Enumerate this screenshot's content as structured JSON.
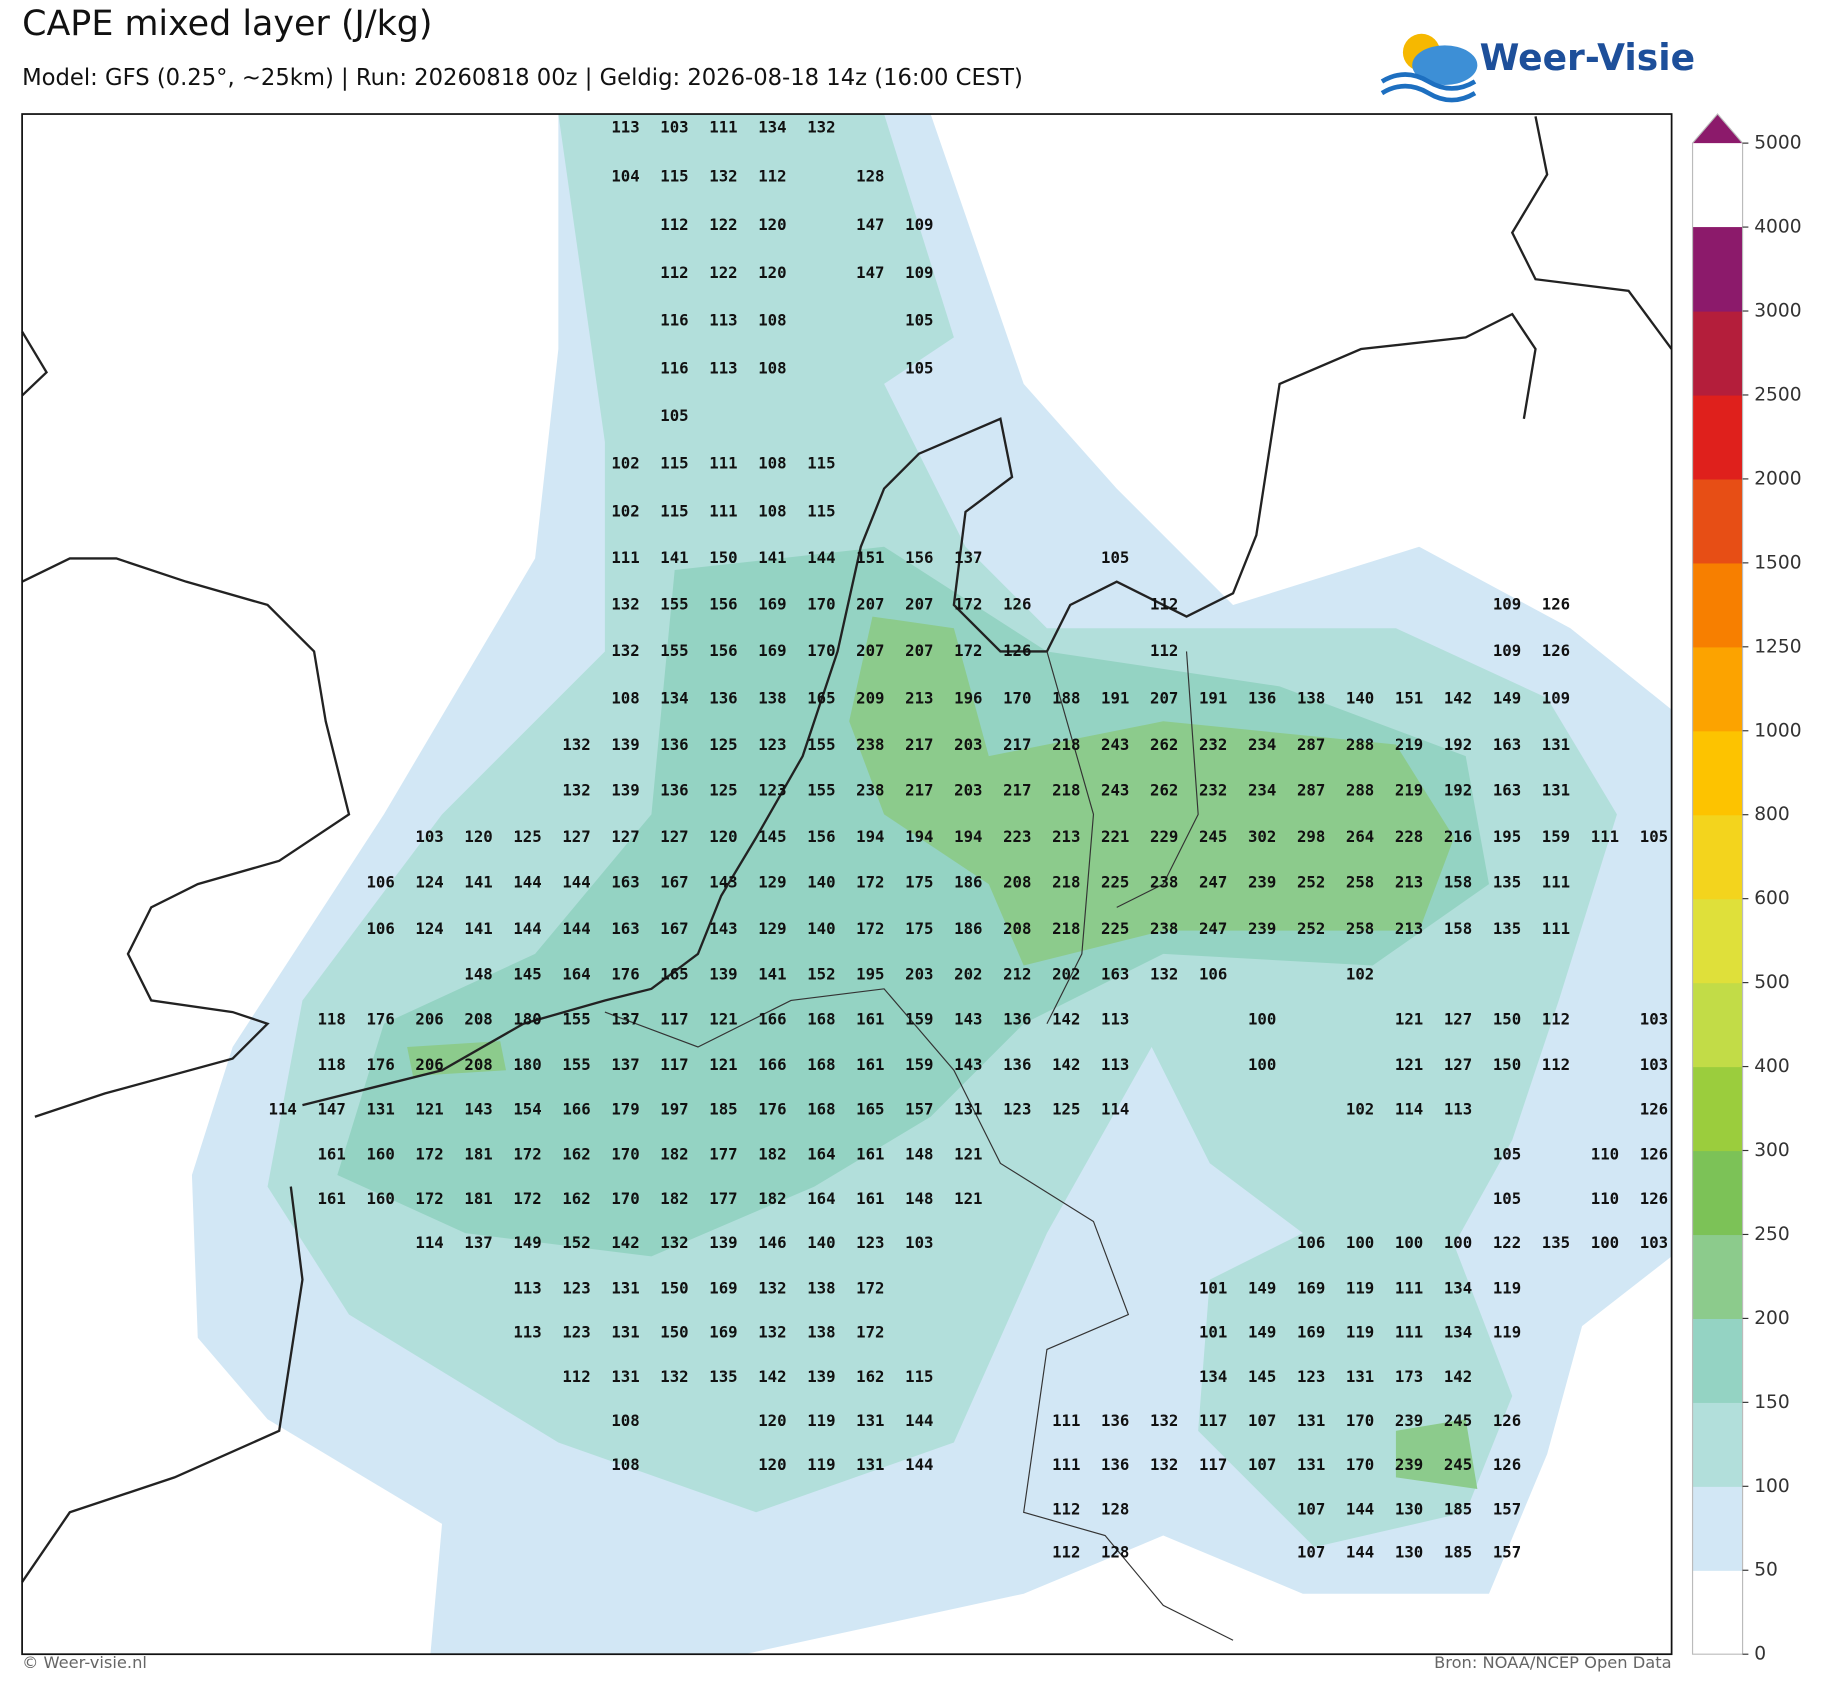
{
  "header": {
    "title": "CAPE mixed layer (J/kg)",
    "subtitle": "Model: GFS (0.25°, ~25km)  |  Run: 20260818 00z  |  Geldig: 2026-08-18 14z (16:00 CEST)"
  },
  "logo": "Weer-Visie",
  "map": {
    "values": [
      [
        113,
        103,
        111,
        134,
        132
      ],
      [
        104,
        115,
        132,
        112,
        128
      ],
      [
        112,
        122,
        120,
        147,
        109
      ],
      [
        112,
        122,
        120,
        147,
        109
      ],
      [
        116,
        113,
        108,
        105
      ],
      [
        116,
        113,
        108,
        105
      ],
      [
        105
      ],
      [
        102,
        115,
        111,
        108,
        115
      ],
      [
        102,
        115,
        111,
        108,
        115
      ],
      [
        111,
        141,
        150,
        141,
        144,
        151,
        156,
        137,
        105
      ],
      [
        132,
        155,
        156,
        169,
        170,
        207,
        207,
        172,
        126,
        112,
        109,
        126
      ],
      [
        132,
        155,
        156,
        169,
        170,
        207,
        207,
        172,
        126,
        112,
        109,
        126
      ],
      [
        108,
        134,
        136,
        138,
        165,
        209,
        213,
        196,
        170,
        188,
        191,
        207,
        191,
        136,
        138,
        140,
        151,
        142,
        149,
        109
      ],
      [
        132,
        139,
        136,
        125,
        123,
        155,
        238,
        217,
        203,
        217,
        218,
        243,
        262,
        232,
        234,
        287,
        288,
        219,
        192,
        163,
        131
      ],
      [
        132,
        139,
        136,
        125,
        123,
        155,
        238,
        217,
        203,
        217,
        218,
        243,
        262,
        232,
        234,
        287,
        288,
        219,
        192,
        163,
        131
      ],
      [
        103,
        120,
        125,
        127,
        127,
        127,
        120,
        145,
        156,
        194,
        194,
        194,
        223,
        213,
        221,
        229,
        245,
        302,
        298,
        264,
        228,
        216,
        195,
        159,
        111,
        105
      ],
      [
        106,
        124,
        141,
        144,
        144,
        163,
        167,
        143,
        129,
        140,
        172,
        175,
        186,
        208,
        218,
        225,
        238,
        247,
        239,
        252,
        258,
        213,
        158,
        135,
        111
      ],
      [
        106,
        124,
        141,
        144,
        144,
        163,
        167,
        143,
        129,
        140,
        172,
        175,
        186,
        208,
        218,
        225,
        238,
        247,
        239,
        252,
        258,
        213,
        158,
        135,
        111
      ],
      [
        148,
        145,
        164,
        176,
        165,
        139,
        141,
        152,
        195,
        203,
        202,
        212,
        202,
        163,
        132,
        106,
        102
      ],
      [
        118,
        176,
        206,
        208,
        180,
        155,
        137,
        117,
        121,
        166,
        168,
        161,
        159,
        143,
        136,
        142,
        113,
        100,
        121,
        127,
        150,
        112,
        103
      ],
      [
        118,
        176,
        206,
        208,
        180,
        155,
        137,
        117,
        121,
        166,
        168,
        161,
        159,
        143,
        136,
        142,
        113,
        100,
        121,
        127,
        150,
        112,
        103
      ],
      [
        114,
        147,
        131,
        121,
        143,
        154,
        166,
        179,
        197,
        185,
        176,
        168,
        165,
        157,
        131,
        123,
        125,
        114,
        102,
        114,
        113,
        126
      ],
      [
        161,
        160,
        172,
        181,
        172,
        162,
        170,
        182,
        177,
        182,
        164,
        161,
        148,
        121,
        105,
        110,
        126
      ],
      [
        161,
        160,
        172,
        181,
        172,
        162,
        170,
        182,
        177,
        182,
        164,
        161,
        148,
        121,
        105,
        110,
        126
      ],
      [
        114,
        137,
        149,
        152,
        142,
        132,
        139,
        146,
        140,
        123,
        103,
        106,
        100,
        100,
        100,
        122,
        135,
        100,
        103
      ],
      [
        113,
        123,
        131,
        150,
        169,
        132,
        138,
        172,
        101,
        149,
        169,
        119,
        111,
        134,
        119
      ],
      [
        113,
        123,
        131,
        150,
        169,
        132,
        138,
        172,
        101,
        149,
        169,
        119,
        111,
        134,
        119
      ],
      [
        112,
        131,
        132,
        135,
        142,
        139,
        162,
        115,
        134,
        145,
        123,
        131,
        173,
        142
      ],
      [
        108,
        120,
        119,
        131,
        144,
        111,
        136,
        132,
        117,
        107,
        131,
        170,
        239,
        245,
        126
      ],
      [
        108,
        120,
        119,
        131,
        144,
        111,
        136,
        132,
        117,
        107,
        131,
        170,
        239,
        245,
        126
      ],
      [
        112,
        128,
        107,
        144,
        130,
        185,
        157
      ],
      [
        112,
        128,
        107,
        144,
        130,
        185,
        157
      ]
    ]
  },
  "colorbar": {
    "ticks": [
      0,
      50,
      100,
      150,
      200,
      250,
      300,
      400,
      500,
      600,
      800,
      1000,
      1250,
      1500,
      2000,
      2500,
      3000,
      4000,
      5000
    ],
    "colors": [
      "#ffffff",
      "#d2e7f5",
      "#b2dfdb",
      "#94d3c3",
      "#8ccb8c",
      "#7cc257",
      "#9bcd3d",
      "#c2dc47",
      "#dfe03a",
      "#f3d41d",
      "#fdc300",
      "#fca300",
      "#f77f00",
      "#e74e15",
      "#df201c",
      "#b41e3b",
      "#8c1a6b"
    ],
    "extend_color": "#8c1a6b"
  },
  "footer": {
    "left": "© Weer-visie.nl",
    "right": "Bron: NOAA/NCEP Open Data"
  }
}
